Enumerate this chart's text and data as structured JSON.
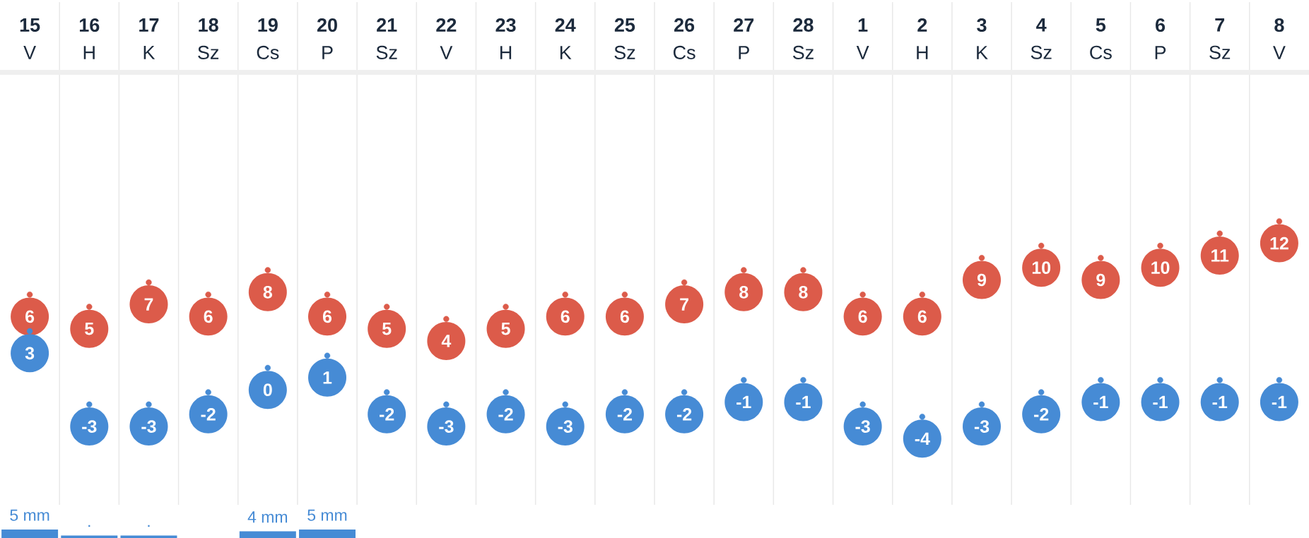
{
  "chart_data": [
    {
      "type": "scatter",
      "categories": [
        "**15**\nV",
        "**16**\nH",
        "**17**\nK",
        "**18**\nSz",
        "**19**\nCs",
        "**20**\nP",
        "**21**\nSz",
        "**22**\nV",
        "**23**\nH",
        "**24**\nK",
        "**25**\nSz",
        "**26**\nCs",
        "**27**\nP",
        "**28**\nSz",
        "**1**\nV",
        "**2**\nH",
        "**3**\nK",
        "**4**\nSz",
        "**5**\nCs",
        "**6**\nP",
        "**7**\nSz",
        "**8**\nV"
      ],
      "series": [
        {
          "color": "#dc5b4a",
          "values": [
            6,
            5,
            7,
            6,
            8,
            6,
            5,
            4,
            5,
            6,
            6,
            7,
            8,
            8,
            6,
            6,
            9,
            10,
            9,
            10,
            11,
            12
          ]
        },
        {
          "color": "#468bd5",
          "values": [
            3,
            -3,
            -3,
            -2,
            0,
            1,
            -2,
            -3,
            -2,
            -3,
            -2,
            -2,
            -1,
            -1,
            -3,
            -4,
            -3,
            -2,
            -1,
            -1,
            -1,
            -1
          ]
        }
      ],
      "tick_labels": "x",
      "data_labels": true,
      "marker": "circle",
      "grid": "x"
    },
    {
      "type": "bar",
      "categories": [
        null,
        null,
        null,
        null,
        null,
        null,
        null,
        null,
        null,
        null,
        null,
        null,
        null,
        null,
        null,
        null,
        null,
        null,
        null,
        null,
        null,
        null
      ],
      "series": [
        {
          "color": "#468bd5",
          "values": [
            5,
            1.5,
            1.5,
            null,
            4,
            5,
            null,
            null,
            null,
            null,
            null,
            null,
            null,
            null,
            null,
            null,
            null,
            null,
            null,
            null,
            null,
            null
          ],
          "value_labels": [
            "5 mm",
            ".",
            ".",
            null,
            "4 mm",
            "5 mm",
            null,
            null,
            null,
            null,
            null,
            null,
            null,
            null,
            null,
            null,
            null,
            null,
            null,
            null,
            null,
            null
          ]
        }
      ],
      "tick_labels": false,
      "grid": "x"
    }
  ]
}
